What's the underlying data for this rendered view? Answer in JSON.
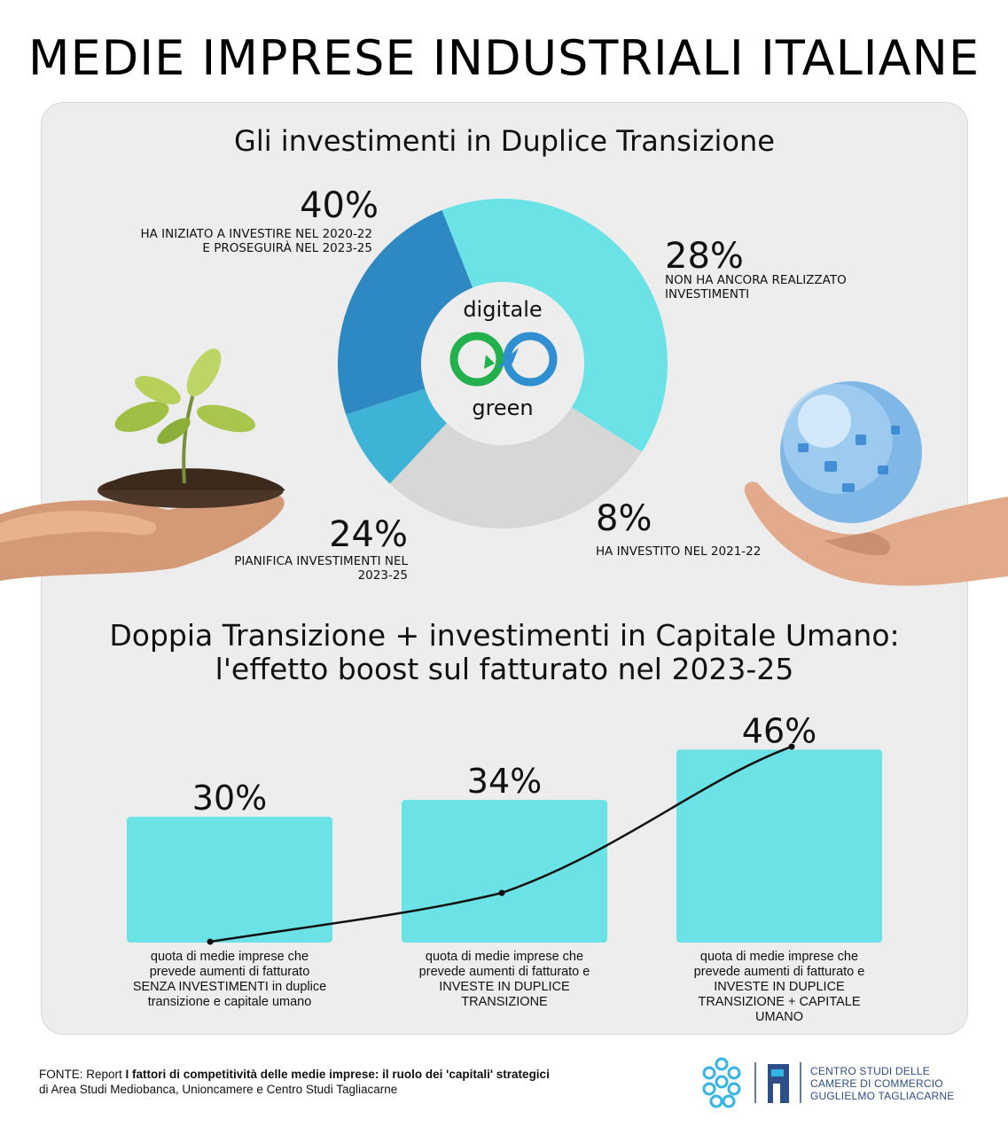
{
  "title": "MEDIE IMPRESE INDUSTRIALI ITALIANE",
  "donut_section": {
    "title": "Gli investimenti in Duplice Transizione",
    "center_top": "digitale",
    "center_bottom": "green"
  },
  "bar_section": {
    "title_line1": "Doppia Transizione + investimenti in Capitale Umano:",
    "title_line2": "l'effetto boost sul fatturato nel 2023-25"
  },
  "colors": {
    "cyan": "#6be3e6",
    "grey": "#d7d7d7",
    "light_blue": "#3fb3d6",
    "blue": "#2e88c2",
    "bar": "#6be3e6"
  },
  "chart_data": [
    {
      "type": "pie",
      "title": "Gli investimenti in Duplice Transizione",
      "slices": [
        {
          "value": 40,
          "label": "40%",
          "text_line1": "HA INIZIATO A INVESTIRE NEL 2020-22",
          "text_line2": "E PROSEGUIRÀ NEL 2023-25",
          "color": "#6be3e6"
        },
        {
          "value": 28,
          "label": "28%",
          "text_line1": "NON HA ANCORA REALIZZATO",
          "text_line2": "INVESTIMENTI",
          "color": "#d7d7d7"
        },
        {
          "value": 8,
          "label": "8%",
          "text_line1": "HA INVESTITO NEL 2021-22",
          "text_line2": "",
          "color": "#3fb3d6"
        },
        {
          "value": 24,
          "label": "24%",
          "text_line1": "PIANIFICA INVESTIMENTI NEL",
          "text_line2": "2023-25",
          "color": "#2e88c2"
        }
      ]
    },
    {
      "type": "bar",
      "title": "Doppia Transizione + investimenti in Capitale Umano: l'effetto boost sul fatturato nel 2023-25",
      "categories": [
        "quota di medie imprese che prevede aumenti di fatturato SENZA INVESTIMENTI in duplice transizione e capitale umano",
        "quota di medie imprese che prevede aumenti di fatturato e INVESTE IN DUPLICE TRANSIZIONE",
        "quota di medie imprese che prevede aumenti di fatturato e INVESTE IN DUPLICE TRANSIZIONE + CAPITALE UMANO"
      ],
      "values": [
        30,
        34,
        46
      ],
      "value_labels": [
        "30%",
        "34%",
        "46%"
      ],
      "captions": [
        [
          "quota di medie imprese che",
          "prevede aumenti di fatturato",
          "SENZA INVESTIMENTI in duplice",
          "transizione e capitale umano"
        ],
        [
          "quota di medie imprese che",
          "prevede aumenti di fatturato e",
          "INVESTE IN DUPLICE",
          "TRANSIZIONE"
        ],
        [
          "quota di medie imprese che",
          "prevede aumenti di fatturato e",
          "INVESTE IN DUPLICE",
          "TRANSIZIONE + CAPITALE",
          "UMANO"
        ]
      ],
      "xlabel": "",
      "ylabel": ""
    }
  ],
  "footer": {
    "source_prefix": "FONTE: Report ",
    "source_bold": "I fattori di competitività delle medie imprese: il ruolo dei 'capitali' strategici",
    "source_line2": "di Area Studi Mediobanca, Unioncamere e Centro Studi Tagliacarne",
    "logo_line1": "CENTRO STUDI DELLE",
    "logo_line2": "CAMERE DI COMMERCIO",
    "logo_line3": "GUGLIELMO TAGLIACARNE"
  }
}
